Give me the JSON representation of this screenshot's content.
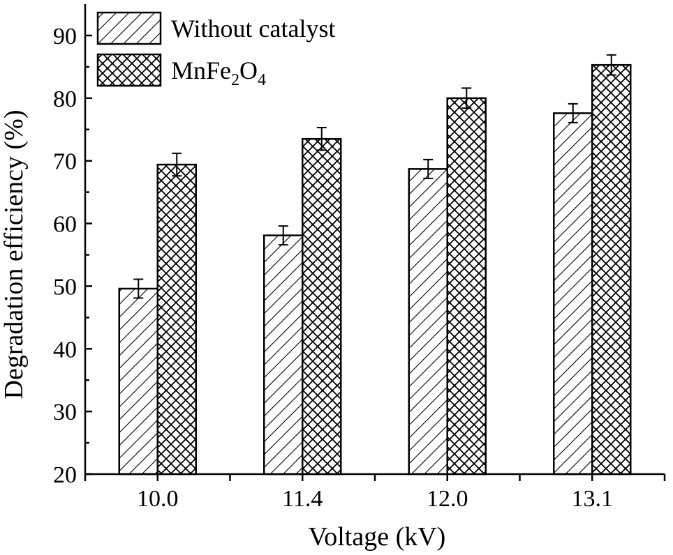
{
  "chart_data": {
    "type": "bar",
    "title": "",
    "xlabel": "Voltage (kV)",
    "ylabel": "Degradation efficiency (%)",
    "ylim": [
      20,
      95
    ],
    "yticks": [
      20,
      30,
      40,
      50,
      60,
      70,
      80,
      90
    ],
    "categories": [
      "10.0",
      "11.4",
      "12.0",
      "13.1"
    ],
    "series": [
      {
        "name": "Without catalyst",
        "name_parts": [
          "Without catalyst"
        ],
        "pattern": "diagonal-hatch",
        "values": [
          49.6,
          58.1,
          68.7,
          77.6
        ],
        "errors": [
          1.5,
          1.5,
          1.5,
          1.5
        ]
      },
      {
        "name": "MnFe2O4",
        "name_parts": [
          "MnFe",
          "2",
          "O",
          "4"
        ],
        "pattern": "cross-hatch",
        "values": [
          69.4,
          73.5,
          80.0,
          85.3
        ],
        "errors": [
          1.8,
          1.8,
          1.6,
          1.6
        ]
      }
    ],
    "legend_position": "top-left",
    "grid": false
  }
}
